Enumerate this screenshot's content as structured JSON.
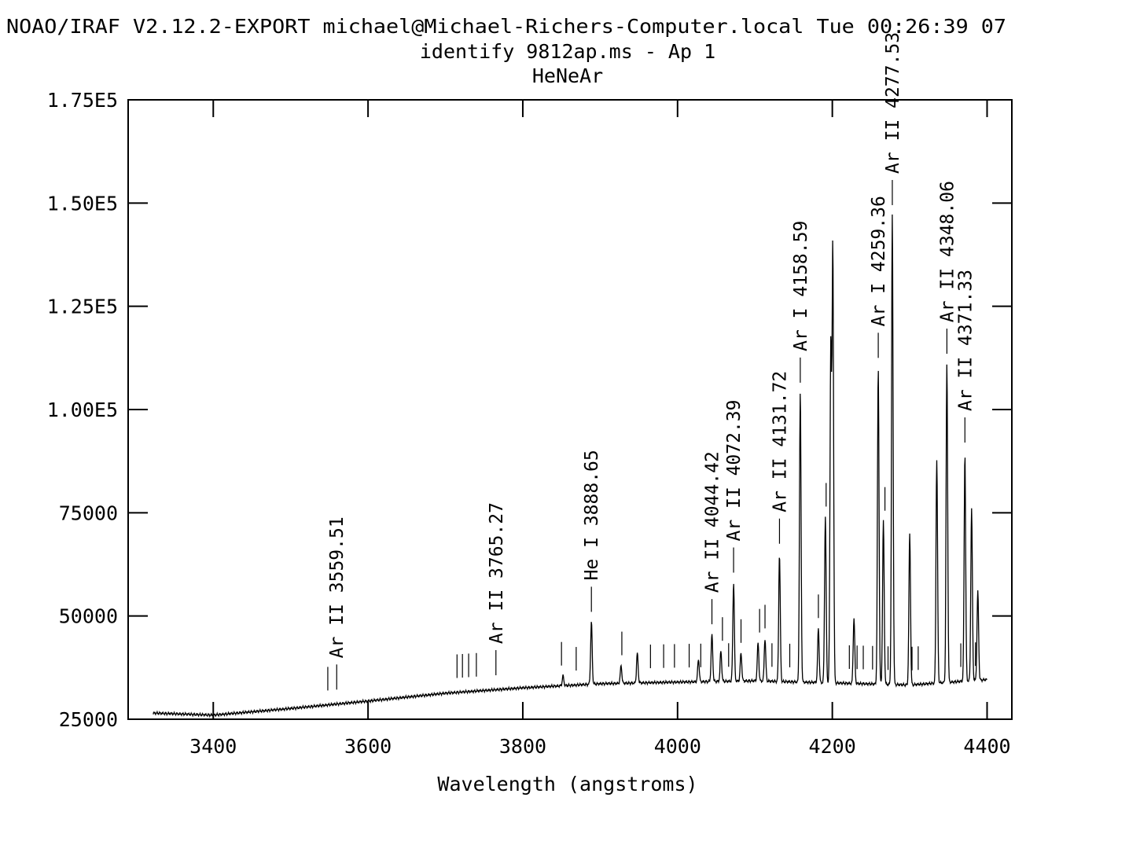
{
  "header": {
    "line1": "NOAO/IRAF V2.12.2-EXPORT michael@Michael-Richers-Computer.local Tue 00:26:39 07",
    "line2": "identify 9812ap.ms - Ap 1",
    "line3": "HeNeAr"
  },
  "chart_data": {
    "type": "line",
    "title": "identify 9812ap.ms - Ap 1",
    "subtitle": "HeNeAr",
    "xlabel": "Wavelength (angstroms)",
    "ylabel": "",
    "xlim": [
      3290,
      4432
    ],
    "ylim": [
      25000,
      175000
    ],
    "x_ticks": [
      3400,
      3600,
      3800,
      4000,
      4200,
      4400
    ],
    "x_tick_labels": [
      "3400",
      "3600",
      "3800",
      "4000",
      "4200",
      "4400"
    ],
    "y_ticks": [
      25000,
      50000,
      75000,
      100000,
      125000,
      150000,
      175000
    ],
    "y_tick_labels": [
      "25000",
      "50000",
      "75000",
      "1.00E5",
      "1.25E5",
      "1.50E5",
      "1.75E5"
    ],
    "grid": false,
    "continuum": [
      [
        3322,
        26500
      ],
      [
        3400,
        26000
      ],
      [
        3500,
        27600
      ],
      [
        3600,
        29400
      ],
      [
        3700,
        31300
      ],
      [
        3800,
        32600
      ],
      [
        3900,
        33600
      ],
      [
        4000,
        34000
      ],
      [
        4100,
        34300
      ],
      [
        4200,
        33800
      ],
      [
        4300,
        33300
      ],
      [
        4400,
        34600
      ]
    ],
    "peaks": [
      {
        "x": 3888.65,
        "y": 48500
      },
      {
        "x": 3927,
        "y": 38000
      },
      {
        "x": 3948,
        "y": 41000
      },
      {
        "x": 3852,
        "y": 35500
      },
      {
        "x": 4027,
        "y": 39500
      },
      {
        "x": 4044.42,
        "y": 45500
      },
      {
        "x": 4056,
        "y": 41500
      },
      {
        "x": 4072.39,
        "y": 58000
      },
      {
        "x": 4082,
        "y": 41000
      },
      {
        "x": 4104,
        "y": 43500
      },
      {
        "x": 4113,
        "y": 44500
      },
      {
        "x": 4131.72,
        "y": 65000
      },
      {
        "x": 4158.59,
        "y": 104000
      },
      {
        "x": 4182,
        "y": 47000
      },
      {
        "x": 4191,
        "y": 74000
      },
      {
        "x": 4198,
        "y": 115000
      },
      {
        "x": 4200.67,
        "y": 139000
      },
      {
        "x": 4228,
        "y": 49500
      },
      {
        "x": 4259.36,
        "y": 110000
      },
      {
        "x": 4266,
        "y": 73000
      },
      {
        "x": 4277.53,
        "y": 147000
      },
      {
        "x": 4300,
        "y": 70000
      },
      {
        "x": 4335,
        "y": 88000
      },
      {
        "x": 4348.06,
        "y": 111000
      },
      {
        "x": 4371.33,
        "y": 89500
      },
      {
        "x": 4380,
        "y": 76000
      },
      {
        "x": 4388,
        "y": 56000
      }
    ],
    "identified_lines": [
      {
        "label": "Ar II 3559.51",
        "x": 3559.51
      },
      {
        "label": "Ar II 3765.27",
        "x": 3765.27
      },
      {
        "label": "He I 3888.65",
        "x": 3888.65
      },
      {
        "label": "Ar II 4044.42",
        "x": 4044.42
      },
      {
        "label": "Ar II 4072.39",
        "x": 4072.39
      },
      {
        "label": "Ar II 4131.72",
        "x": 4131.72
      },
      {
        "label": "Ar I 4158.59",
        "x": 4158.59
      },
      {
        "label": "Ar I 4259.36",
        "x": 4259.36
      },
      {
        "label": "Ar II 4277.53",
        "x": 4277.53
      },
      {
        "label": "Ar II 4348.06",
        "x": 4348.06
      },
      {
        "label": "Ar II 4371.33",
        "x": 4371.33
      }
    ],
    "unlabeled_marks": [
      3548,
      3715,
      3722,
      3730,
      3740,
      3850,
      3869,
      3928,
      3965,
      3982,
      3996,
      4015,
      4030,
      4058,
      4066,
      4082,
      4106,
      4113,
      4122,
      4145,
      4182,
      4192,
      4222,
      4232,
      4240,
      4252,
      4268,
      4272,
      4303,
      4311,
      4385,
      4366
    ]
  }
}
